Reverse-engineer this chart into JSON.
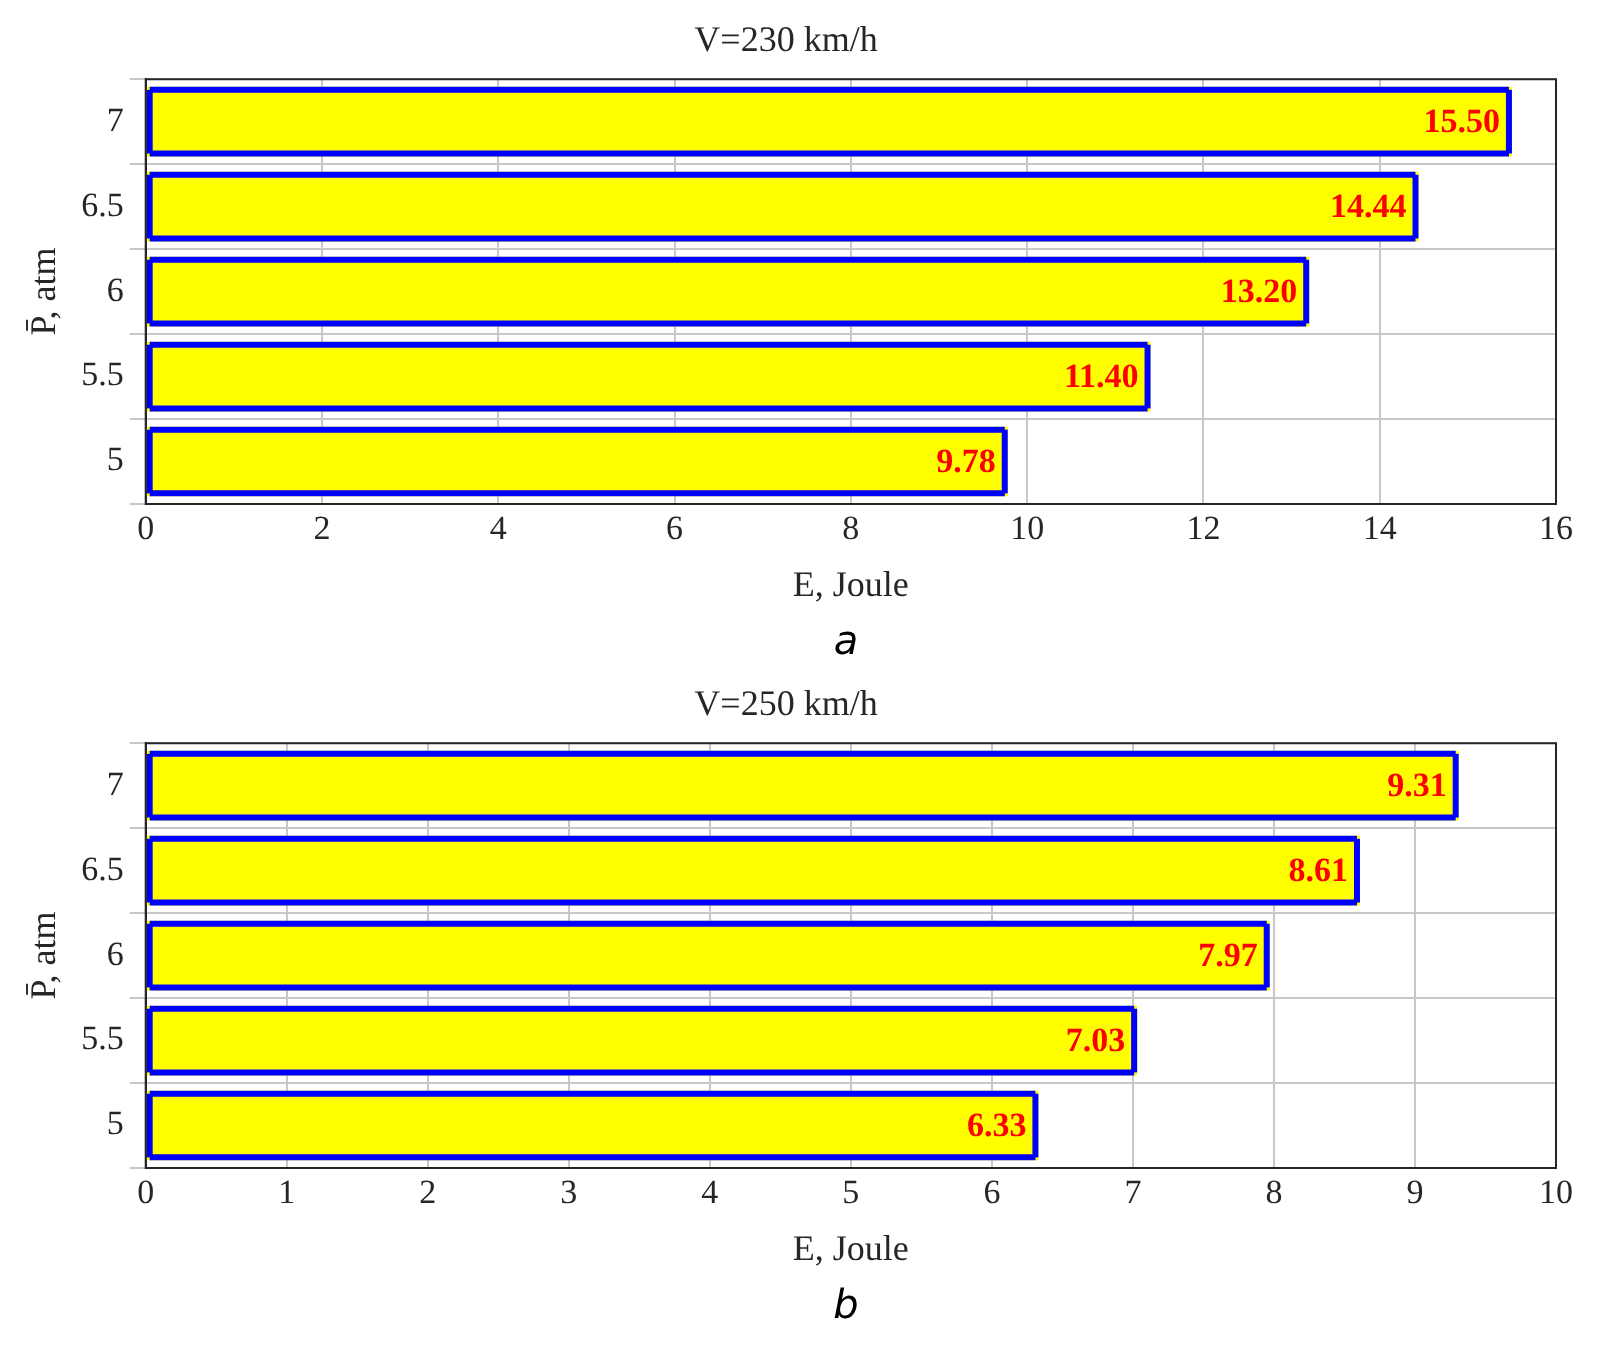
{
  "chart_data": [
    {
      "type": "bar",
      "orientation": "horizontal",
      "title": "V=230 km/h",
      "xlabel": "E, Joule",
      "ylabel": "P̄, atm",
      "categories": [
        "7",
        "6.5",
        "6",
        "5.5",
        "5"
      ],
      "series": [
        {
          "color": "#ffff00",
          "values": [
            15.5,
            14.44,
            13.2,
            11.4,
            9.78
          ],
          "value_labels": [
            "15.50",
            "14.44",
            "13.20",
            "11.40",
            "9.78"
          ]
        }
      ],
      "xlim": [
        0,
        16
      ],
      "xticks": [
        0,
        2,
        4,
        6,
        8,
        10,
        12,
        14,
        16
      ],
      "grid": true,
      "legend": false,
      "annotations": [
        "a"
      ]
    },
    {
      "type": "bar",
      "orientation": "horizontal",
      "title": "V=250 km/h",
      "xlabel": "E, Joule",
      "ylabel": "P̄, atm",
      "categories": [
        "7",
        "6.5",
        "6",
        "5.5",
        "5"
      ],
      "series": [
        {
          "color": "#ffff00",
          "values": [
            9.31,
            8.61,
            7.97,
            7.03,
            6.33
          ],
          "value_labels": [
            "9.31",
            "8.61",
            "7.97",
            "7.03",
            "6.33"
          ]
        }
      ],
      "xlim": [
        0,
        10
      ],
      "xticks": [
        0,
        1,
        2,
        3,
        4,
        5,
        6,
        7,
        8,
        9,
        10
      ],
      "grid": true,
      "legend": false,
      "annotations": [
        "b"
      ]
    }
  ]
}
